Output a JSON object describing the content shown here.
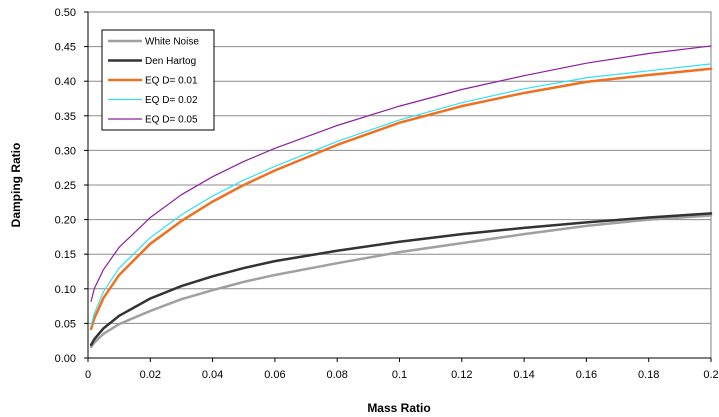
{
  "chart_data": {
    "type": "line",
    "title": "",
    "xlabel": "Mass Ratio",
    "ylabel": "Damping Ratio",
    "xlim": [
      0,
      0.2
    ],
    "ylim": [
      0,
      0.5
    ],
    "x_ticks": [
      "0",
      "0.02",
      "0.04",
      "0.06",
      "0.08",
      "0.1",
      "0.12",
      "0.14",
      "0.16",
      "0.18",
      "0.2"
    ],
    "y_ticks": [
      "0.00",
      "0.05",
      "0.10",
      "0.15",
      "0.20",
      "0.25",
      "0.30",
      "0.35",
      "0.40",
      "0.45",
      "0.50"
    ],
    "grid": "horizontal",
    "legend_position": "top-left",
    "x": [
      0.001,
      0.002,
      0.005,
      0.01,
      0.02,
      0.03,
      0.04,
      0.05,
      0.06,
      0.08,
      0.1,
      0.12,
      0.14,
      0.16,
      0.18,
      0.2
    ],
    "series": [
      {
        "name": "White Noise",
        "color": "#a0a0a0",
        "width": 2.5,
        "values": [
          0.016,
          0.022,
          0.035,
          0.049,
          0.068,
          0.085,
          0.098,
          0.11,
          0.12,
          0.137,
          0.153,
          0.166,
          0.179,
          0.191,
          0.2,
          0.206
        ]
      },
      {
        "name": "Den Hartog",
        "color": "#333333",
        "width": 2.5,
        "values": [
          0.019,
          0.027,
          0.043,
          0.061,
          0.086,
          0.104,
          0.118,
          0.13,
          0.14,
          0.155,
          0.168,
          0.179,
          0.188,
          0.196,
          0.203,
          0.209
        ]
      },
      {
        "name": "EQ D= 0.01",
        "color": "#f07020",
        "width": 2.5,
        "values": [
          0.042,
          0.057,
          0.087,
          0.12,
          0.165,
          0.198,
          0.226,
          0.25,
          0.271,
          0.308,
          0.34,
          0.364,
          0.383,
          0.399,
          0.409,
          0.418
        ]
      },
      {
        "name": "EQ D= 0.02",
        "color": "#33e0f0",
        "width": 1.2,
        "values": [
          0.047,
          0.064,
          0.096,
          0.13,
          0.174,
          0.207,
          0.234,
          0.257,
          0.277,
          0.313,
          0.344,
          0.369,
          0.389,
          0.405,
          0.415,
          0.425
        ]
      },
      {
        "name": "EQ D= 0.05",
        "color": "#8a1fa0",
        "width": 1.2,
        "values": [
          0.082,
          0.1,
          0.128,
          0.16,
          0.203,
          0.236,
          0.262,
          0.284,
          0.303,
          0.336,
          0.364,
          0.388,
          0.408,
          0.426,
          0.44,
          0.451
        ]
      }
    ]
  }
}
